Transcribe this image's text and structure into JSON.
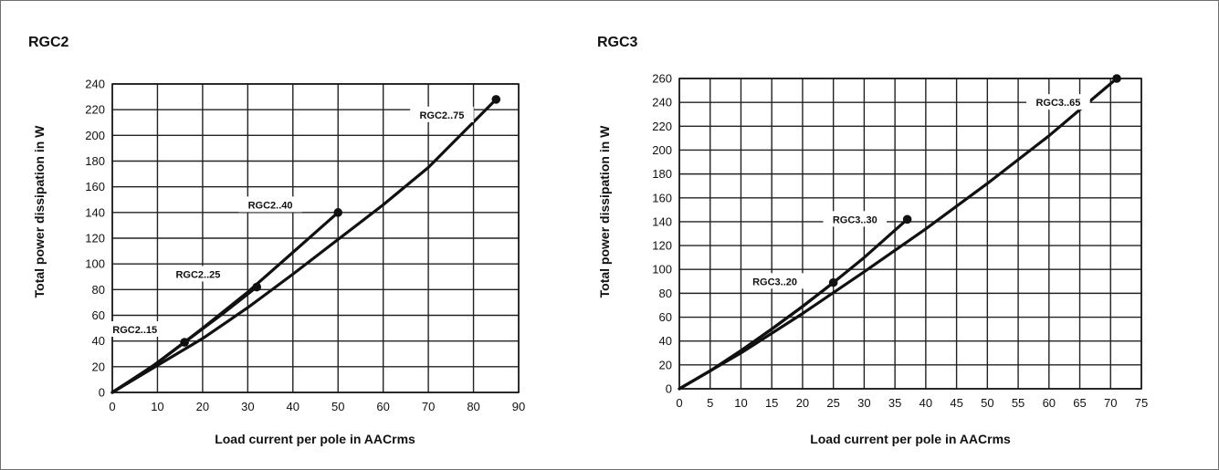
{
  "chart_data": [
    {
      "type": "line",
      "title": "RGC2",
      "xlabel": "Load current per pole in AACrms",
      "ylabel": "Total power dissipation in W",
      "xlim": [
        0,
        90
      ],
      "ylim": [
        0,
        240
      ],
      "xticks": [
        0,
        10,
        20,
        30,
        40,
        50,
        60,
        70,
        80,
        90
      ],
      "yticks": [
        0,
        20,
        40,
        60,
        80,
        100,
        120,
        140,
        160,
        180,
        200,
        220,
        240
      ],
      "grid": true,
      "series": [
        {
          "name": "RGC2..15",
          "x": [
            0,
            8,
            16
          ],
          "y": [
            0,
            18,
            39
          ]
        },
        {
          "name": "RGC2..25",
          "x": [
            0,
            8,
            16,
            24,
            32
          ],
          "y": [
            0,
            18,
            39,
            60,
            82
          ]
        },
        {
          "name": "RGC2..40",
          "x": [
            0,
            10,
            20,
            30,
            40,
            50
          ],
          "y": [
            0,
            23,
            50,
            78,
            109,
            140
          ]
        },
        {
          "name": "RGC2..75",
          "x": [
            0,
            10,
            20,
            30,
            40,
            50,
            60,
            70,
            85
          ],
          "y": [
            0,
            21,
            42,
            66,
            92,
            119,
            146,
            175,
            228
          ]
        }
      ],
      "annotations": [
        {
          "text": "RGC2..15",
          "x": 5,
          "y": 49
        },
        {
          "text": "RGC2..25",
          "x": 19,
          "y": 92
        },
        {
          "text": "RGC2..40",
          "x": 35,
          "y": 146
        },
        {
          "text": "RGC2..75",
          "x": 73,
          "y": 216
        }
      ]
    },
    {
      "type": "line",
      "title": "RGC3",
      "xlabel": "Load current per pole in AACrms",
      "ylabel": "Total power dissipation in W",
      "xlim": [
        0,
        75
      ],
      "ylim": [
        0,
        260
      ],
      "xticks": [
        0,
        5,
        10,
        15,
        20,
        25,
        30,
        35,
        40,
        45,
        50,
        55,
        60,
        65,
        70,
        75
      ],
      "yticks": [
        0,
        20,
        40,
        60,
        80,
        100,
        120,
        140,
        160,
        180,
        200,
        220,
        240,
        260
      ],
      "grid": true,
      "series": [
        {
          "name": "RGC3..20",
          "x": [
            0,
            5,
            10,
            15,
            20,
            25
          ],
          "y": [
            0,
            15,
            32,
            50,
            69,
            89
          ]
        },
        {
          "name": "RGC3..30",
          "x": [
            0,
            5,
            10,
            15,
            20,
            25,
            30,
            37
          ],
          "y": [
            0,
            15,
            32,
            50,
            69,
            89,
            110,
            142
          ]
        },
        {
          "name": "RGC3..65",
          "x": [
            0,
            10,
            20,
            30,
            40,
            50,
            60,
            71
          ],
          "y": [
            0,
            30,
            63,
            98,
            134,
            172,
            212,
            260
          ]
        }
      ],
      "annotations": [
        {
          "text": "RGC3..20",
          "x": 15.5,
          "y": 90
        },
        {
          "text": "RGC3..30",
          "x": 28.5,
          "y": 142
        },
        {
          "text": "RGC3..65",
          "x": 61.5,
          "y": 240
        }
      ]
    }
  ]
}
